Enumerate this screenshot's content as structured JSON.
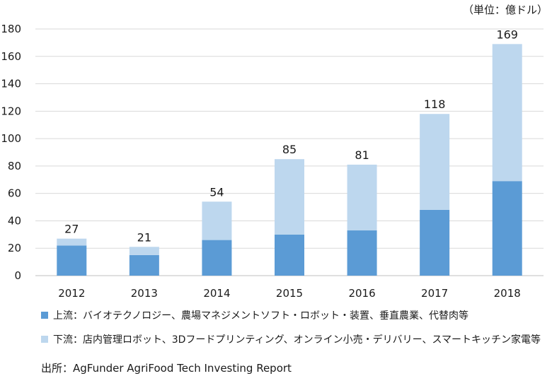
{
  "chart_data": {
    "type": "bar",
    "stacked": true,
    "unit": "（単位：億ドル）",
    "categories": [
      "2012",
      "2013",
      "2014",
      "2015",
      "2016",
      "2017",
      "2018"
    ],
    "series": [
      {
        "name": "上流：バイオテクノロジー、農場マネジメントソフト・ロボット・装置、垂直農業、代替肉等",
        "values": [
          22,
          15,
          26,
          30,
          33,
          48,
          69
        ],
        "color": "#5b9bd5"
      },
      {
        "name": "下流：店内管理ロボット、3Dフードプリンティング、オンライン小売・デリバリー、スマートキッチン家電等",
        "values": [
          5,
          6,
          28,
          55,
          48,
          70,
          100
        ],
        "color": "#bdd7ee"
      }
    ],
    "totals": [
      "27",
      "21",
      "54",
      "85",
      "81",
      "118",
      "169"
    ],
    "y_ticks": [
      "0",
      "20",
      "40",
      "60",
      "80",
      "100",
      "120",
      "140",
      "160",
      "180"
    ],
    "ylim": [
      0,
      180
    ],
    "grid": true,
    "legend_position": "bottom"
  },
  "source": "出所：AgFunder AgriFood Tech Investing Report"
}
